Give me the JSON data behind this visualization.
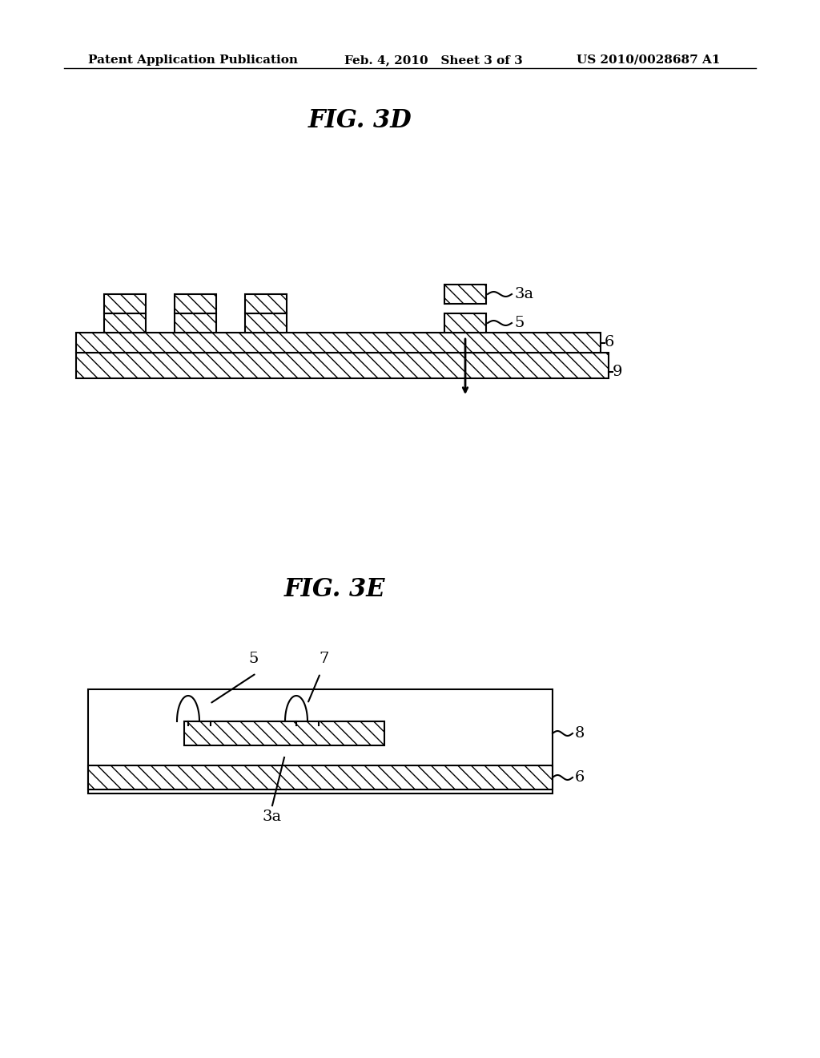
{
  "bg_color": "#ffffff",
  "header_left": "Patent Application Publication",
  "header_mid": "Feb. 4, 2010   Sheet 3 of 3",
  "header_right": "US 2010/0028687 A1",
  "fig3d_title": "FIG. 3D",
  "fig3e_title": "FIG. 3E",
  "hatch_pattern": "////",
  "line_color": "#000000",
  "hatch_color": "#000000"
}
